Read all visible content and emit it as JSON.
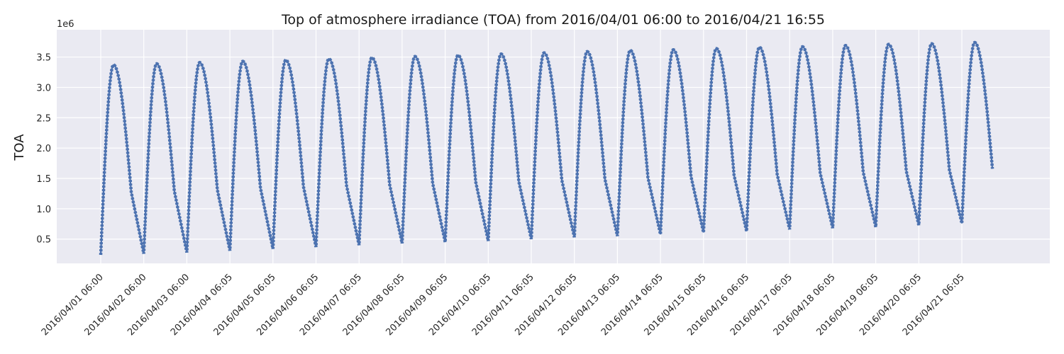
{
  "chart_data": {
    "type": "line",
    "title": "Top of atmosphere irradiance (TOA) from 2016/04/01 06:00 to 2016/04/21 16:55",
    "ylabel": "TOA",
    "xlabel": "",
    "y_offset_label": "1e6",
    "ylim": [
      0.1,
      3.95
    ],
    "y_ticks": [
      0.5,
      1.0,
      1.5,
      2.0,
      2.5,
      3.0,
      3.5
    ],
    "y_tick_labels": [
      "0.5",
      "1.0",
      "1.5",
      "2.0",
      "2.5",
      "3.0",
      "3.5"
    ],
    "x_tick_labels": [
      "2016/04/01 06:00",
      "2016/04/02 06:00",
      "2016/04/03 06:00",
      "2016/04/04 06:05",
      "2016/04/05 06:05",
      "2016/04/06 06:05",
      "2016/04/07 06:05",
      "2016/04/08 06:05",
      "2016/04/09 06:05",
      "2016/04/10 06:05",
      "2016/04/11 06:05",
      "2016/04/12 06:05",
      "2016/04/13 06:05",
      "2016/04/14 06:05",
      "2016/04/15 06:05",
      "2016/04/16 06:05",
      "2016/04/17 06:05",
      "2016/04/18 06:05",
      "2016/04/19 06:05",
      "2016/04/20 06:05",
      "2016/04/21 06:05"
    ],
    "day_window": [
      "06:00",
      "16:55"
    ],
    "series": [
      {
        "color": "#4c72b0",
        "daily_start": [
          0.24,
          0.26,
          0.28,
          0.31,
          0.34,
          0.37,
          0.4,
          0.43,
          0.45,
          0.47,
          0.5,
          0.53,
          0.55,
          0.58,
          0.61,
          0.63,
          0.66,
          0.68,
          0.7,
          0.73,
          0.76
        ],
        "daily_peak": [
          3.37,
          3.39,
          3.41,
          3.43,
          3.45,
          3.47,
          3.49,
          3.51,
          3.53,
          3.55,
          3.57,
          3.59,
          3.61,
          3.62,
          3.64,
          3.66,
          3.67,
          3.69,
          3.71,
          3.72,
          3.74
        ],
        "daily_end": [
          1.27,
          1.29,
          1.31,
          1.34,
          1.36,
          1.38,
          1.4,
          1.42,
          1.44,
          1.45,
          1.47,
          1.49,
          1.51,
          1.53,
          1.55,
          1.57,
          1.59,
          1.6,
          1.62,
          1.64,
          1.66
        ]
      }
    ],
    "grid": true,
    "background": "#eaeaf2",
    "grid_color": "#ffffff"
  }
}
